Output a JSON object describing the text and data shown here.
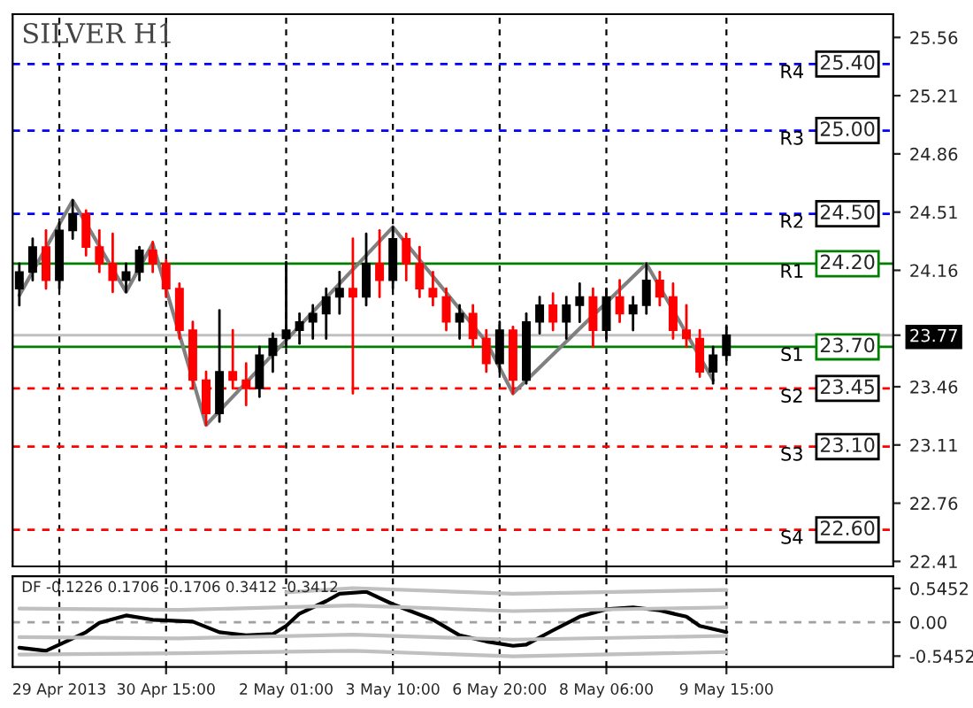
{
  "chart_data": [
    {
      "type": "candlestick",
      "title": "SILVER H1",
      "categories": [
        null,
        null,
        null,
        null,
        null,
        null,
        null,
        null,
        null,
        null,
        null,
        null,
        null,
        null,
        null,
        null,
        null,
        null,
        null,
        null,
        null,
        null,
        null,
        null,
        null,
        null,
        null,
        null,
        null,
        null,
        null,
        null,
        null,
        null,
        null,
        null,
        null,
        null,
        null,
        null,
        null,
        null,
        null,
        null,
        null,
        null,
        null,
        null,
        null,
        null,
        null,
        null,
        null,
        null,
        null,
        null,
        null,
        null,
        null,
        null,
        null,
        null,
        null,
        null,
        null,
        null
      ],
      "ohlc": [
        [
          24.05,
          24.2,
          23.95,
          24.15
        ],
        [
          24.15,
          24.35,
          24.1,
          24.3
        ],
        [
          24.3,
          24.4,
          24.05,
          24.1
        ],
        [
          24.1,
          24.45,
          24.05,
          24.4
        ],
        [
          24.4,
          24.58,
          24.35,
          24.5
        ],
        [
          24.5,
          24.52,
          24.25,
          24.3
        ],
        [
          24.3,
          24.4,
          24.15,
          24.2
        ],
        [
          24.2,
          24.38,
          24.03,
          24.1
        ],
        [
          24.1,
          24.2,
          24.03,
          24.15
        ],
        [
          24.15,
          24.3,
          24.1,
          24.28
        ],
        [
          24.28,
          24.33,
          24.15,
          24.2
        ],
        [
          24.2,
          24.22,
          24.0,
          24.05
        ],
        [
          24.05,
          24.08,
          23.75,
          23.8
        ],
        [
          23.8,
          23.85,
          23.45,
          23.5
        ],
        [
          23.5,
          23.55,
          23.23,
          23.3
        ],
        [
          23.3,
          23.92,
          23.25,
          23.55
        ],
        [
          23.55,
          23.8,
          23.45,
          23.5
        ],
        [
          23.5,
          23.6,
          23.35,
          23.45
        ],
        [
          23.45,
          23.7,
          23.4,
          23.65
        ],
        [
          23.65,
          23.78,
          23.55,
          23.75
        ],
        [
          23.75,
          24.21,
          23.7,
          23.8
        ],
        [
          23.8,
          23.9,
          23.72,
          23.85
        ],
        [
          23.85,
          23.95,
          23.75,
          23.9
        ],
        [
          23.9,
          24.05,
          23.75,
          24.0
        ],
        [
          24.0,
          24.15,
          23.9,
          24.05
        ],
        [
          24.05,
          24.35,
          23.42,
          24.0
        ],
        [
          24.0,
          24.38,
          23.95,
          24.2
        ],
        [
          24.2,
          24.4,
          24.0,
          24.1
        ],
        [
          24.1,
          24.42,
          24.05,
          24.35
        ],
        [
          24.35,
          24.38,
          24.1,
          24.2
        ],
        [
          24.2,
          24.3,
          24.0,
          24.05
        ],
        [
          24.05,
          24.15,
          23.95,
          24.0
        ],
        [
          24.0,
          24.05,
          23.8,
          23.85
        ],
        [
          23.85,
          23.95,
          23.75,
          23.9
        ],
        [
          23.9,
          23.95,
          23.7,
          23.75
        ],
        [
          23.75,
          23.8,
          23.55,
          23.6
        ],
        [
          23.6,
          23.85,
          23.55,
          23.8
        ],
        [
          23.8,
          23.82,
          23.42,
          23.5
        ],
        [
          23.5,
          23.9,
          23.48,
          23.85
        ],
        [
          23.85,
          24.0,
          23.78,
          23.95
        ],
        [
          23.95,
          24.02,
          23.8,
          23.85
        ],
        [
          23.85,
          24.0,
          23.75,
          23.95
        ],
        [
          23.95,
          24.08,
          23.85,
          24.0
        ],
        [
          24.0,
          24.05,
          23.7,
          23.8
        ],
        [
          23.8,
          24.05,
          23.75,
          24.0
        ],
        [
          24.0,
          24.1,
          23.85,
          23.9
        ],
        [
          23.9,
          24.0,
          23.8,
          23.95
        ],
        [
          23.95,
          24.2,
          23.9,
          24.1
        ],
        [
          24.1,
          24.15,
          23.95,
          24.0
        ],
        [
          24.0,
          24.08,
          23.75,
          23.8
        ],
        [
          23.8,
          23.95,
          23.7,
          23.75
        ],
        [
          23.75,
          23.8,
          23.52,
          23.55
        ],
        [
          23.55,
          23.7,
          23.48,
          23.65
        ],
        [
          23.65,
          23.82,
          23.62,
          23.77
        ],
        null,
        null,
        null,
        null,
        null,
        null,
        null,
        null,
        null,
        null,
        null,
        null
      ],
      "colors": [
        "#000000",
        "#000000",
        "#ff0000",
        "#000000",
        "#000000",
        "#ff0000",
        "#ff0000",
        "#ff0000",
        "#000000",
        "#000000",
        "#ff0000",
        "#ff0000",
        "#ff0000",
        "#ff0000",
        "#ff0000",
        "#000000",
        "#ff0000",
        "#ff0000",
        "#000000",
        "#000000",
        "#000000",
        "#000000",
        "#000000",
        "#000000",
        "#000000",
        "#ff0000",
        "#000000",
        "#ff0000",
        "#000000",
        "#ff0000",
        "#ff0000",
        "#ff0000",
        "#ff0000",
        "#000000",
        "#ff0000",
        "#ff0000",
        "#000000",
        "#ff0000",
        "#000000",
        "#000000",
        "#ff0000",
        "#000000",
        "#000000",
        "#ff0000",
        "#000000",
        "#ff0000",
        "#000000",
        "#000000",
        "#ff0000",
        "#ff0000",
        "#ff0000",
        "#ff0000",
        "#000000",
        "#000000",
        null,
        null,
        null,
        null,
        null,
        null,
        null,
        null,
        null,
        null,
        null,
        null
      ],
      "series": [
        {
          "type": "line",
          "color": "#808080",
          "values": [
            24.01,
            null,
            null,
            null,
            24.58,
            null,
            null,
            null,
            24.03,
            null,
            24.32,
            null,
            null,
            null,
            23.23,
            null,
            null,
            null,
            null,
            null,
            null,
            null,
            null,
            null,
            null,
            null,
            null,
            null,
            24.42,
            null,
            null,
            null,
            null,
            null,
            null,
            23.73,
            null,
            23.42,
            null,
            null,
            null,
            null,
            null,
            null,
            null,
            null,
            null,
            24.2,
            null,
            null,
            null,
            null,
            23.5,
            null,
            null,
            null,
            null,
            null,
            null,
            null,
            null,
            null,
            null,
            null,
            null,
            null
          ]
        }
      ],
      "ref_lines": [
        {
          "axis": "y",
          "value": 25.4,
          "label": "R4",
          "color": "#0000ff",
          "line_style": "dashed"
        },
        {
          "axis": "y",
          "value": 25.0,
          "label": "R3",
          "color": "#0000ff",
          "line_style": "dashed"
        },
        {
          "axis": "y",
          "value": 24.5,
          "label": "R2",
          "color": "#0000ff",
          "line_style": "dashed"
        },
        {
          "axis": "y",
          "value": 24.2,
          "label": "R1",
          "color": "#008000",
          "line_style": "solid"
        },
        {
          "axis": "y",
          "value": 23.7,
          "label": "S1",
          "color": "#008000",
          "line_style": "solid"
        },
        {
          "axis": "y",
          "value": 23.45,
          "label": "S2",
          "color": "#ff0000",
          "line_style": "dashed"
        },
        {
          "axis": "y",
          "value": 23.1,
          "label": "S3",
          "color": "#ff0000",
          "line_style": "dashed"
        },
        {
          "axis": "y",
          "value": 22.6,
          "label": "S4",
          "color": "#ff0000",
          "line_style": "dashed"
        },
        {
          "axis": "y",
          "value": 23.77,
          "color": "#c0c0c0",
          "line_style": "solid"
        }
      ],
      "annotations": [
        {
          "text": "25.40",
          "y": 25.4
        },
        {
          "text": "25.00",
          "y": 25.0
        },
        {
          "text": "24.50",
          "y": 24.5
        },
        {
          "text": "24.20",
          "y": 24.2
        },
        {
          "text": "23.70",
          "y": 23.7
        },
        {
          "text": "23.45",
          "y": 23.45
        },
        {
          "text": "23.10",
          "y": 23.1
        },
        {
          "text": "22.60",
          "y": 22.6
        }
      ],
      "ylim": [
        22.38,
        25.7
      ],
      "yticks": [
        25.56,
        25.21,
        24.86,
        24.51,
        24.16,
        {
          "value": 23.77,
          "label": "23.77"
        },
        23.46,
        23.11,
        22.76,
        22.41
      ],
      "tick_labels": "y",
      "grid": "x"
    },
    {
      "type": "line",
      "categories": [
        null,
        null,
        null,
        "29 Apr 2013",
        null,
        null,
        null,
        null,
        null,
        null,
        null,
        "30 Apr 15:00",
        null,
        null,
        null,
        null,
        null,
        null,
        null,
        null,
        "2 May 01:00",
        null,
        null,
        null,
        null,
        null,
        null,
        null,
        "3 May 10:00",
        null,
        null,
        null,
        null,
        null,
        null,
        null,
        "6 May 20:00",
        null,
        null,
        null,
        null,
        null,
        null,
        null,
        "8 May 06:00",
        null,
        null,
        null,
        null,
        null,
        null,
        null,
        null,
        "9 May 15:00",
        null,
        null,
        null,
        null,
        null,
        null,
        null,
        null,
        null,
        null,
        null,
        null
      ],
      "series": [
        {
          "color": "#000000",
          "values": [
            -0.41,
            null,
            -0.46,
            -0.36,
            null,
            -0.16,
            -0.01,
            null,
            0.11,
            null,
            0.04,
            null,
            null,
            0.01,
            null,
            -0.16,
            null,
            -0.21,
            null,
            -0.19,
            -0.06,
            0.14,
            null,
            0.34,
            0.46,
            null,
            0.49,
            null,
            0.29,
            null,
            null,
            0.04,
            null,
            -0.21,
            null,
            -0.31,
            null,
            -0.38,
            -0.36,
            null,
            -0.13,
            null,
            0.09,
            null,
            0.21,
            null,
            0.24,
            null,
            0.19,
            null,
            0.09,
            -0.06,
            null,
            -0.16,
            null,
            null,
            null,
            null,
            null,
            null,
            null,
            null,
            null,
            null,
            null,
            null
          ]
        },
        {
          "color": "#c0c0c0",
          "values": [
            null,
            null,
            null,
            null,
            null,
            null,
            null,
            null,
            null,
            null,
            null,
            null,
            null,
            null,
            null,
            null,
            null,
            null,
            null,
            null,
            0.48,
            null,
            null,
            null,
            null,
            0.55,
            null,
            null,
            null,
            null,
            null,
            null,
            null,
            null,
            null,
            null,
            null,
            0.46,
            null,
            null,
            null,
            null,
            null,
            null,
            null,
            null,
            null,
            null,
            null,
            null,
            null,
            null,
            null,
            0.52,
            null,
            null,
            null,
            null,
            null,
            null,
            null,
            null,
            null,
            null,
            null,
            null
          ]
        },
        {
          "color": "#c0c0c0",
          "values": [
            0.22,
            null,
            null,
            null,
            null,
            null,
            null,
            null,
            null,
            null,
            null,
            null,
            0.2,
            null,
            null,
            null,
            null,
            null,
            null,
            null,
            null,
            null,
            null,
            null,
            null,
            0.27,
            null,
            null,
            null,
            null,
            null,
            null,
            null,
            null,
            null,
            null,
            null,
            0.18,
            null,
            null,
            null,
            null,
            null,
            null,
            null,
            null,
            null,
            null,
            null,
            null,
            null,
            null,
            null,
            0.24,
            null,
            null,
            null,
            null,
            null,
            null,
            null,
            null,
            null,
            null,
            null,
            null
          ]
        },
        {
          "color": "#c0c0c0",
          "values": [
            -0.24,
            null,
            null,
            null,
            null,
            null,
            null,
            null,
            null,
            null,
            null,
            null,
            -0.26,
            null,
            null,
            null,
            null,
            null,
            null,
            null,
            null,
            null,
            null,
            null,
            null,
            -0.2,
            null,
            null,
            null,
            null,
            null,
            null,
            null,
            null,
            null,
            null,
            null,
            -0.28,
            null,
            null,
            null,
            null,
            null,
            null,
            null,
            null,
            null,
            null,
            null,
            null,
            null,
            null,
            null,
            -0.22,
            null,
            null,
            null,
            null,
            null,
            null,
            null,
            null,
            null,
            null,
            null,
            null
          ]
        },
        {
          "color": "#c0c0c0",
          "values": [
            -0.52,
            null,
            null,
            null,
            null,
            null,
            null,
            null,
            null,
            null,
            null,
            null,
            -0.5,
            null,
            null,
            null,
            null,
            null,
            null,
            null,
            null,
            null,
            null,
            null,
            null,
            -0.46,
            null,
            null,
            null,
            null,
            null,
            null,
            null,
            null,
            null,
            null,
            null,
            -0.55,
            null,
            null,
            null,
            null,
            null,
            null,
            null,
            null,
            null,
            null,
            null,
            null,
            null,
            null,
            null,
            -0.48,
            null,
            null,
            null,
            null,
            null,
            null,
            null,
            null,
            null,
            null,
            null,
            null
          ]
        }
      ],
      "annotations": [
        "DF -0.1226 0.1706 -0.1706 0.3412 -0.3412"
      ],
      "ref_lines": [
        {
          "axis": "y",
          "value": 0,
          "color": "#a0a0a0",
          "line_style": "dashed"
        }
      ],
      "ylim": [
        -0.72,
        0.74
      ],
      "yticks": [
        0.5452,
        {
          "value": 0,
          "label": "0.00"
        },
        -0.5452
      ],
      "grid": "x"
    }
  ]
}
